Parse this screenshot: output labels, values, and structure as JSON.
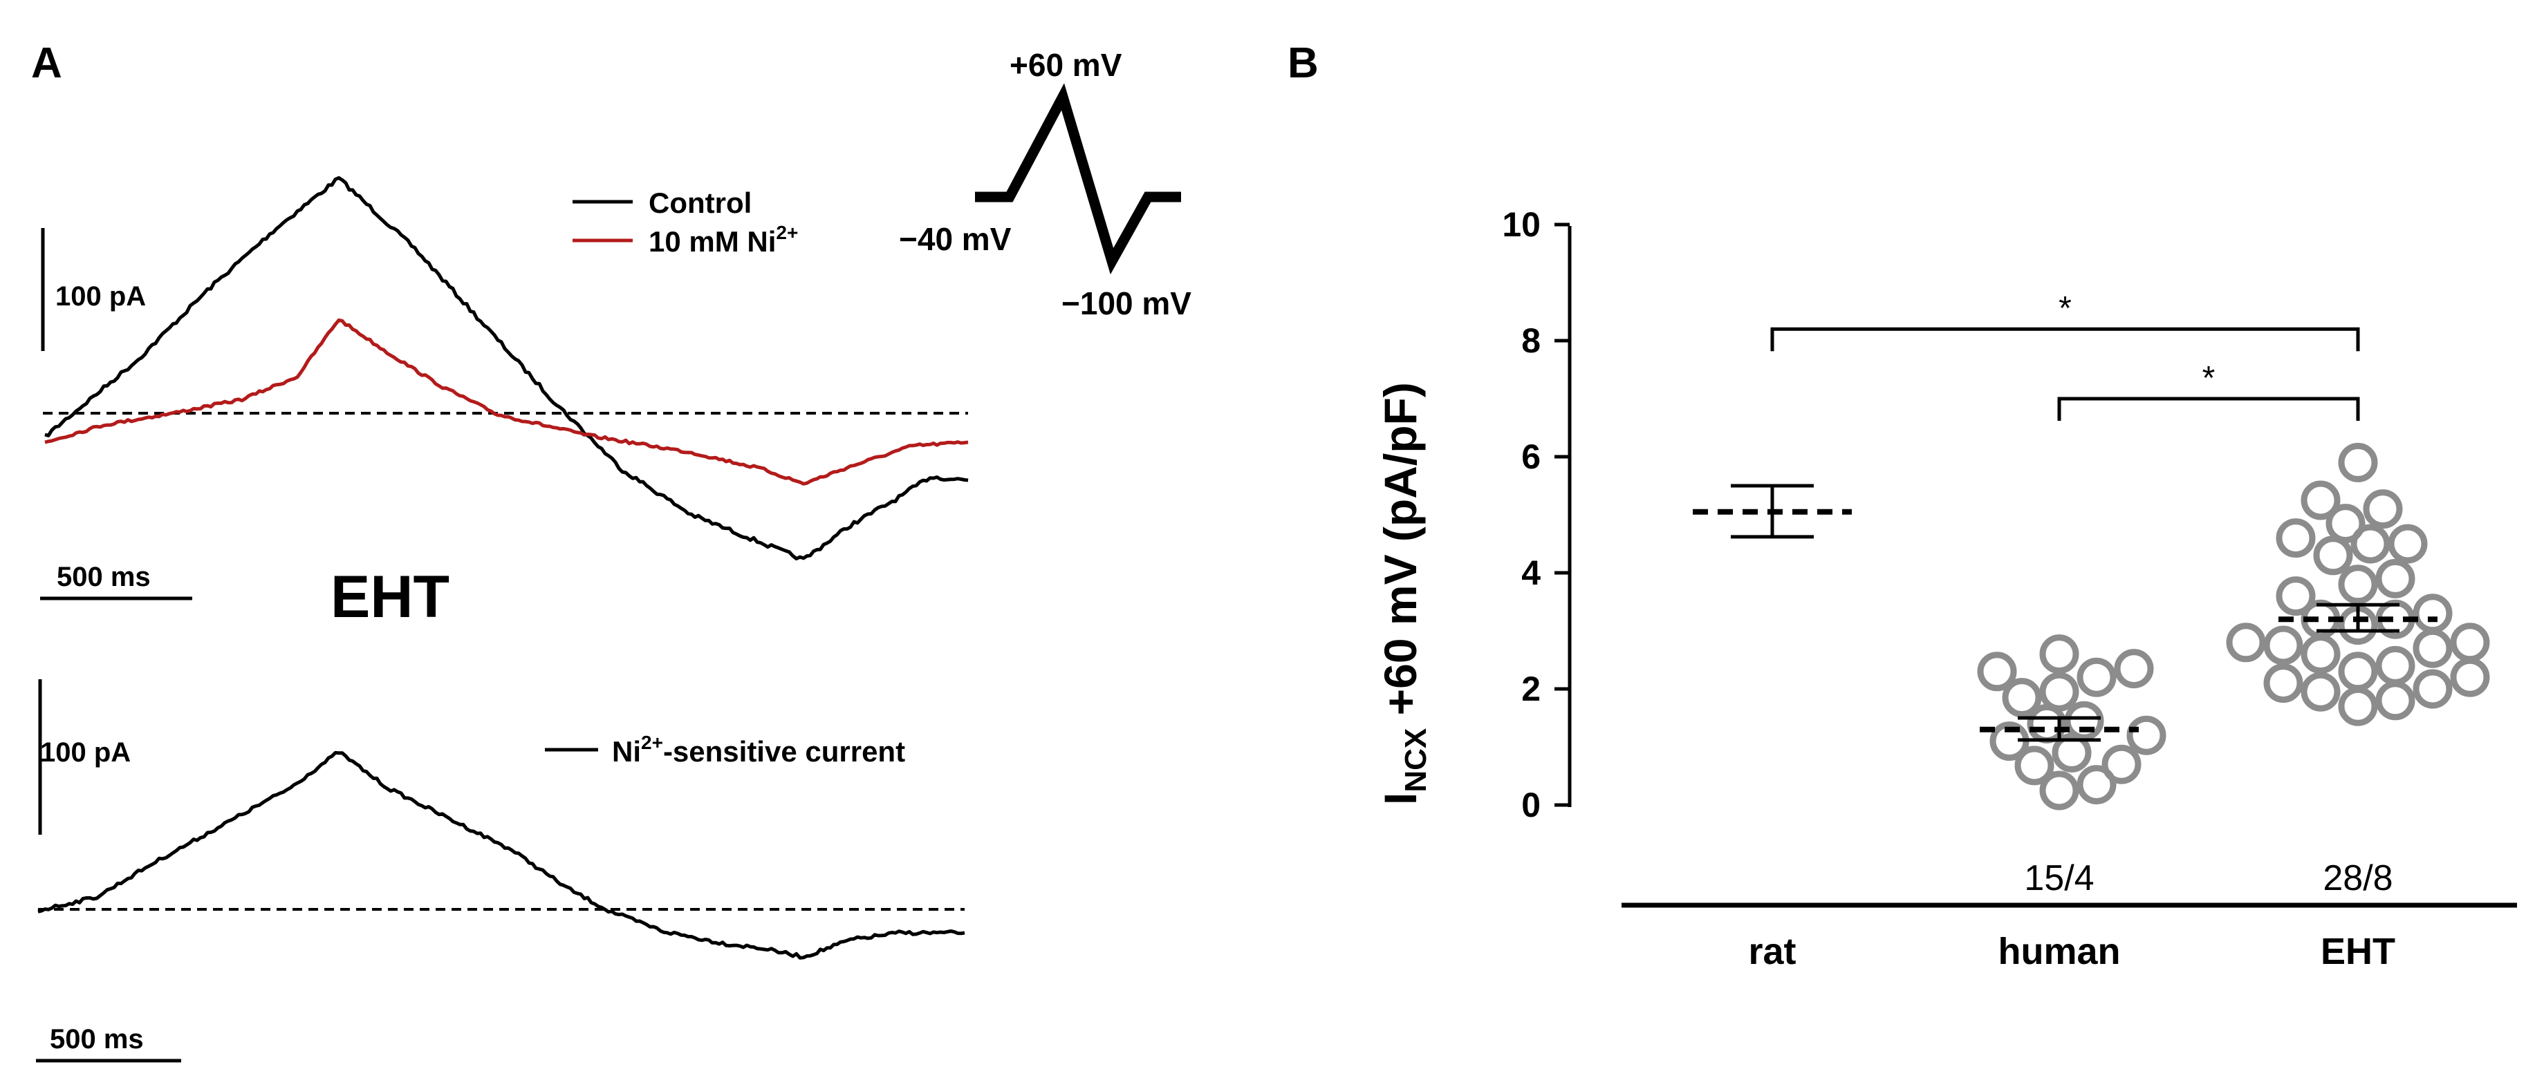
{
  "panel_a": {
    "label": "A",
    "protocol": {
      "peak_label": "+60 mV",
      "hold_label": "−40 mV",
      "trough_label": "−100 mV"
    },
    "top": {
      "scale_current": "100 pA",
      "scale_time": "500 ms",
      "legend_control": "Control",
      "legend_ni_prefix": "10 mM Ni",
      "legend_ni_sup": "2+",
      "colors": {
        "control": "#000000",
        "ni": "#b31b1b"
      }
    },
    "section_label": "EHT",
    "bottom": {
      "scale_current": "100 pA",
      "scale_time": "500 ms",
      "legend_prefix": "Ni",
      "legend_sup": "2+",
      "legend_suffix": "-sensitive current"
    }
  },
  "panel_b": {
    "label": "B",
    "chart_data": {
      "type": "scatter",
      "ylabel_main": "I",
      "ylabel_sub": "NCX",
      "ylabel_rest": " +60 mV (pA/pF)",
      "ylim": [
        0,
        10
      ],
      "yticks": [
        "0",
        "2",
        "4",
        "6",
        "8",
        "10"
      ],
      "categories": [
        "rat",
        "human",
        "EHT"
      ],
      "counts": [
        "",
        "15/4",
        "28/8"
      ],
      "marker_color": "#8c8c8c",
      "groups": [
        {
          "category": "rat",
          "mean": 5.05,
          "sem_low": 4.62,
          "sem_high": 5.5,
          "points": []
        },
        {
          "category": "human",
          "mean": 1.3,
          "sem_low": 1.12,
          "sem_high": 1.5,
          "points": [
            2.6,
            2.3,
            2.2,
            2.35,
            1.95,
            1.85,
            1.45,
            1.4,
            1.2,
            1.1,
            0.9,
            0.7,
            0.68,
            0.35,
            0.25
          ]
        },
        {
          "category": "EHT",
          "mean": 3.2,
          "sem_low": 3.0,
          "sem_high": 3.45,
          "points": [
            5.9,
            5.25,
            5.1,
            4.85,
            4.6,
            4.5,
            4.5,
            4.3,
            3.9,
            3.8,
            3.6,
            3.3,
            3.2,
            3.2,
            3.1,
            2.8,
            2.8,
            2.75,
            2.7,
            2.6,
            2.4,
            2.3,
            2.2,
            2.1,
            2.0,
            1.95,
            1.8,
            1.7
          ]
        }
      ],
      "significance": [
        {
          "from": "rat",
          "to": "EHT",
          "label": "*"
        },
        {
          "from": "human",
          "to": "EHT",
          "label": "*"
        }
      ]
    }
  }
}
